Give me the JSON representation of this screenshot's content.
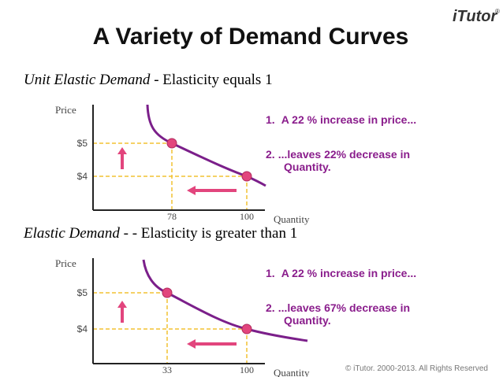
{
  "header": {
    "title": "A Variety of Demand Curves",
    "logo": "iTutor",
    "logo_mark": "®"
  },
  "panels": [
    {
      "heading": "Unit Elastic Demand",
      "subheading": " - Elasticity equals 1",
      "y_label": "Price",
      "x_label": "Quantity",
      "y_ticks": [
        "$5",
        "$4"
      ],
      "x_ticks": [
        "78",
        "100"
      ],
      "notes": [
        {
          "number": "1.",
          "text": "A 22 % increase in price..."
        },
        {
          "number": "2.",
          "text": "...leaves  22% decrease in",
          "text2": "Quantity."
        }
      ]
    },
    {
      "heading": "Elastic Demand",
      "subheading": " - - Elasticity is greater than 1",
      "y_label": "Price",
      "x_label": "Quantity",
      "y_ticks": [
        "$5",
        "$4"
      ],
      "x_ticks": [
        "33",
        "100"
      ],
      "notes": [
        {
          "number": "1.",
          "text": "A 22 % increase in price..."
        },
        {
          "number": "2.",
          "text": "...leaves  67% decrease in",
          "text2": "Quantity."
        }
      ]
    }
  ],
  "footer": {
    "copyright": "© iTutor. 2000-2013. All Rights Reserved"
  }
}
